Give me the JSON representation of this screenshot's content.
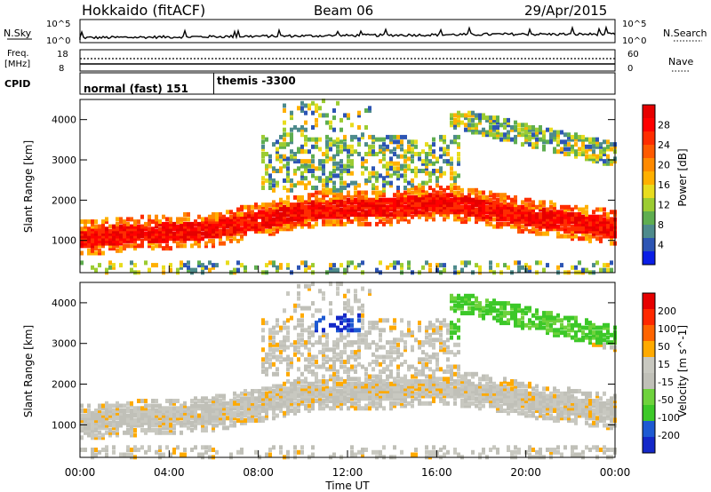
{
  "header": {
    "station": "Hokkaido (fitACF)",
    "beam": "Beam 06",
    "date": "29/Apr/2015"
  },
  "strip_panels": {
    "nsky_label": "N.Sky",
    "nsearch_label": "N.Search",
    "nsky_ticks": [
      "10^5",
      "10^0"
    ],
    "nsky_right_ticks": [
      "10^5",
      "10^0"
    ],
    "freq_label": [
      "Freq.",
      "[MHz]"
    ],
    "freq_ticks": [
      "18",
      "8"
    ],
    "nave_label": "Nave",
    "nave_ticks": [
      "60",
      "0"
    ],
    "cpid_label": "CPID",
    "cpid_segments": [
      {
        "label": "normal (fast) 151",
        "start_hour": 0,
        "end_hour": 6
      },
      {
        "label": "themis -3300",
        "start_hour": 6,
        "end_hour": 24
      }
    ]
  },
  "chart_data": [
    {
      "type": "heatmap",
      "panel": "power",
      "ylabel": "Slant Range [km]",
      "yticks": [
        1000,
        2000,
        3000,
        4000
      ],
      "ylim": [
        200,
        4500
      ],
      "xlim": [
        0,
        24
      ],
      "colorbar": {
        "label": "Power [dB]",
        "ticks": [
          "28",
          "24",
          "20",
          "16",
          "12",
          "8",
          "4"
        ],
        "colors": [
          "#0a1ee6",
          "#2d55b4",
          "#4e8b8c",
          "#5fae50",
          "#9ccc32",
          "#e8dc1e",
          "#ffb000",
          "#ff8a00",
          "#ff5a00",
          "#ff2d00",
          "#ff0000",
          "#e60000"
        ]
      },
      "band_range_km": [
        [
          0,
          1050
        ],
        [
          2,
          1150
        ],
        [
          4,
          1200
        ],
        [
          6,
          1280
        ],
        [
          8,
          1500
        ],
        [
          10,
          1750
        ],
        [
          12,
          1800
        ],
        [
          14,
          1820
        ],
        [
          16,
          1950
        ],
        [
          18,
          1800
        ],
        [
          20,
          1600
        ],
        [
          22,
          1450
        ],
        [
          24,
          1300
        ]
      ]
    },
    {
      "type": "heatmap",
      "panel": "velocity",
      "ylabel": "Slant Range [km]",
      "yticks": [
        1000,
        2000,
        3000,
        4000
      ],
      "ylim": [
        200,
        4500
      ],
      "xlim": [
        0,
        24
      ],
      "colorbar": {
        "label": "Velocity [m s^-1]",
        "ticks": [
          "200",
          "100",
          "50",
          "15",
          "-15",
          "-50",
          "-100",
          "-200"
        ],
        "colors": [
          "#1428c8",
          "#1e5ad2",
          "#3cc828",
          "#6ed23c",
          "#c0c0b8",
          "#c8c8c0",
          "#ffaa00",
          "#ff6400",
          "#ff2800",
          "#e60000"
        ]
      }
    }
  ],
  "xaxis": {
    "title": "Time UT",
    "tick_labels": [
      "00:00",
      "04:00",
      "08:00",
      "12:00",
      "16:00",
      "20:00",
      "00:00"
    ],
    "tick_hours": [
      0,
      4,
      8,
      12,
      16,
      20,
      24
    ]
  }
}
